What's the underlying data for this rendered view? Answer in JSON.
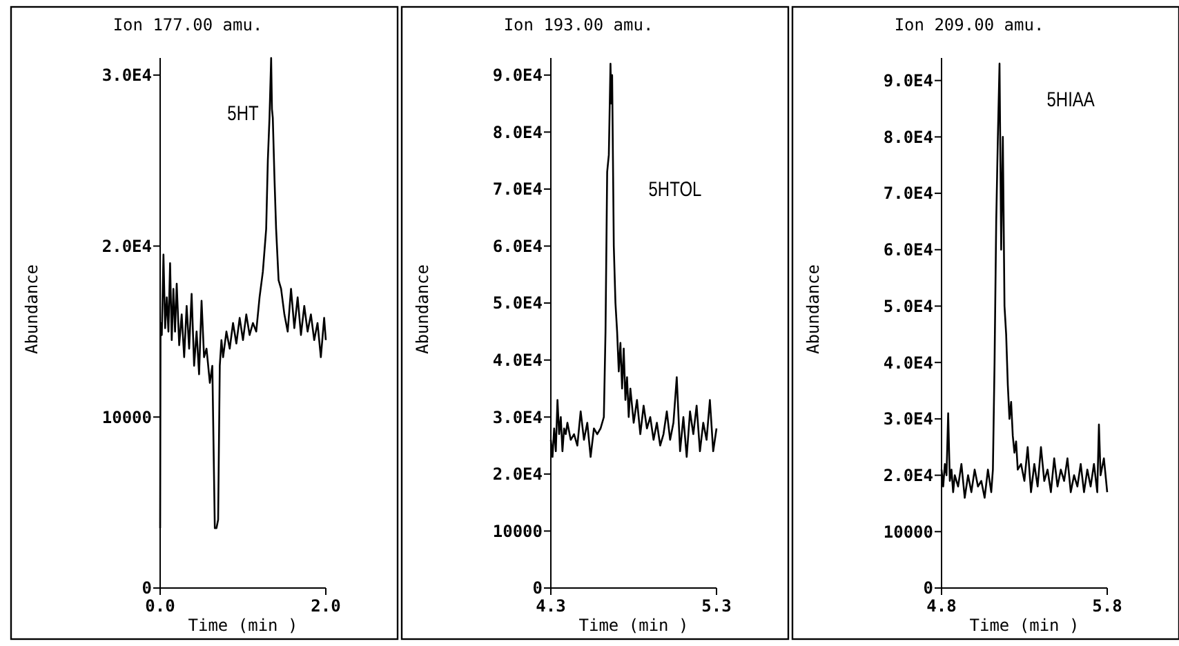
{
  "chart_data": [
    {
      "type": "line",
      "title": "Ion 177.00 amu.",
      "xlabel": "Time (min )",
      "ylabel": "Abundance",
      "xlim": [
        0,
        2
      ],
      "xticks": [
        {
          "value": 0,
          "label": "0.0"
        },
        {
          "value": 2,
          "label": "2.0"
        }
      ],
      "ylim": [
        0,
        31000
      ],
      "yticks": [
        {
          "value": 0,
          "label": "0"
        },
        {
          "value": 10000,
          "label": "10000"
        },
        {
          "value": 20000,
          "label": "2.0E4"
        },
        {
          "value": 30000,
          "label": "3.0E4"
        }
      ],
      "annotations": [
        "5HT"
      ],
      "series": [
        {
          "color": "#000000",
          "x": [
            0,
            0.005,
            0.02,
            0.04,
            0.06,
            0.08,
            0.1,
            0.12,
            0.14,
            0.16,
            0.18,
            0.2,
            0.23,
            0.26,
            0.29,
            0.32,
            0.35,
            0.38,
            0.41,
            0.44,
            0.47,
            0.5,
            0.53,
            0.56,
            0.6,
            0.63,
            0.66,
            0.68,
            0.7,
            0.72,
            0.74,
            0.76,
            0.8,
            0.84,
            0.88,
            0.92,
            0.96,
            1.0,
            1.04,
            1.08,
            1.12,
            1.16,
            1.2,
            1.24,
            1.28,
            1.3,
            1.32,
            1.34,
            1.35,
            1.36,
            1.38,
            1.4,
            1.43,
            1.46,
            1.5,
            1.54,
            1.58,
            1.62,
            1.66,
            1.7,
            1.74,
            1.78,
            1.82,
            1.86,
            1.9,
            1.94,
            1.98,
            2.0
          ],
          "values": [
            3500,
            15500,
            14800,
            19500,
            15200,
            17000,
            15000,
            19000,
            14500,
            17500,
            15000,
            17800,
            14200,
            16000,
            13500,
            16500,
            14000,
            17200,
            13000,
            15000,
            12500,
            16800,
            13500,
            14000,
            12000,
            13000,
            3500,
            3500,
            4000,
            13000,
            14500,
            13500,
            15000,
            14000,
            15500,
            14300,
            15800,
            14500,
            16000,
            14800,
            15500,
            15000,
            17000,
            18500,
            21000,
            25000,
            27500,
            31000,
            28000,
            27500,
            24000,
            21000,
            18000,
            17500,
            16000,
            15000,
            17500,
            15200,
            17000,
            14800,
            16500,
            15000,
            16000,
            14500,
            15500,
            13500,
            15800,
            14500
          ]
        }
      ]
    },
    {
      "type": "line",
      "title": "Ion 193.00 amu.",
      "xlabel": "Time (min )",
      "ylabel": "Abundance",
      "xlim": [
        4.3,
        5.3
      ],
      "xticks": [
        4.3,
        5.3
      ],
      "ylim": [
        0,
        93000
      ],
      "yticks": [
        {
          "value": 0,
          "label": "0"
        },
        {
          "value": 10000,
          "label": "10000"
        },
        {
          "value": 20000,
          "label": "2.0E4"
        },
        {
          "value": 30000,
          "label": "3.0E4"
        },
        {
          "value": 40000,
          "label": "4.0E4"
        },
        {
          "value": 50000,
          "label": "5.0E4"
        },
        {
          "value": 60000,
          "label": "6.0E4"
        },
        {
          "value": 70000,
          "label": "7.0E4"
        },
        {
          "value": 80000,
          "label": "8.0E4"
        },
        {
          "value": 90000,
          "label": "9.0E4"
        }
      ],
      "annotations": [
        "5HTOL"
      ],
      "series": [
        {
          "color": "#000000",
          "x": [
            4.3,
            4.31,
            4.32,
            4.33,
            4.34,
            4.35,
            4.36,
            4.37,
            4.38,
            4.39,
            4.4,
            4.42,
            4.44,
            4.46,
            4.48,
            4.5,
            4.52,
            4.54,
            4.56,
            4.58,
            4.6,
            4.62,
            4.63,
            4.64,
            4.65,
            4.66,
            4.665,
            4.67,
            4.675,
            4.68,
            4.69,
            4.7,
            4.71,
            4.72,
            4.73,
            4.74,
            4.75,
            4.76,
            4.77,
            4.78,
            4.8,
            4.82,
            4.84,
            4.86,
            4.88,
            4.9,
            4.92,
            4.94,
            4.96,
            4.98,
            5.0,
            5.02,
            5.04,
            5.06,
            5.08,
            5.1,
            5.12,
            5.14,
            5.16,
            5.18,
            5.2,
            5.22,
            5.24,
            5.26,
            5.28,
            5.3
          ],
          "values": [
            26000,
            23000,
            28000,
            24000,
            33000,
            27000,
            30000,
            24000,
            28000,
            27000,
            29000,
            26000,
            27000,
            25000,
            31000,
            26000,
            29000,
            23000,
            28000,
            27000,
            28000,
            30000,
            45000,
            73000,
            76000,
            92000,
            85000,
            90000,
            75000,
            60000,
            50000,
            45000,
            38000,
            43000,
            35000,
            42000,
            33000,
            37000,
            30000,
            35000,
            29000,
            33000,
            27000,
            32000,
            28000,
            30000,
            26000,
            29000,
            25000,
            27000,
            31000,
            26000,
            29000,
            37000,
            24000,
            30000,
            23000,
            31000,
            27000,
            32000,
            24000,
            29000,
            26000,
            33000,
            24000,
            28000
          ]
        }
      ]
    },
    {
      "type": "line",
      "title": "Ion 209.00 amu.",
      "xlabel": "Time (min )",
      "ylabel": "Abundance",
      "xlim": [
        4.8,
        5.8
      ],
      "xticks": [
        4.8,
        5.8
      ],
      "ylim": [
        0,
        94000
      ],
      "yticks": [
        {
          "value": 0,
          "label": "0"
        },
        {
          "value": 10000,
          "label": "10000"
        },
        {
          "value": 20000,
          "label": "2.0E4"
        },
        {
          "value": 30000,
          "label": "3.0E4"
        },
        {
          "value": 40000,
          "label": "4.0E4"
        },
        {
          "value": 50000,
          "label": "5.0E4"
        },
        {
          "value": 60000,
          "label": "6.0E4"
        },
        {
          "value": 70000,
          "label": "7.0E4"
        },
        {
          "value": 80000,
          "label": "8.0E4"
        },
        {
          "value": 90000,
          "label": "9.0E4"
        }
      ],
      "annotations": [
        "5HIAA"
      ],
      "series": [
        {
          "color": "#000000",
          "x": [
            4.8,
            4.81,
            4.82,
            4.83,
            4.84,
            4.85,
            4.86,
            4.87,
            4.88,
            4.9,
            4.92,
            4.94,
            4.96,
            4.98,
            5.0,
            5.02,
            5.04,
            5.06,
            5.08,
            5.1,
            5.11,
            5.12,
            5.13,
            5.14,
            5.15,
            5.16,
            5.17,
            5.18,
            5.19,
            5.2,
            5.21,
            5.22,
            5.23,
            5.24,
            5.25,
            5.26,
            5.28,
            5.3,
            5.32,
            5.34,
            5.36,
            5.38,
            5.4,
            5.42,
            5.44,
            5.46,
            5.48,
            5.5,
            5.52,
            5.54,
            5.56,
            5.58,
            5.6,
            5.62,
            5.64,
            5.66,
            5.68,
            5.7,
            5.72,
            5.74,
            5.75,
            5.76,
            5.78,
            5.8
          ],
          "values": [
            21000,
            18000,
            22000,
            20000,
            31000,
            19000,
            21000,
            17000,
            20000,
            18000,
            22000,
            16000,
            20000,
            17000,
            21000,
            18000,
            19000,
            16000,
            21000,
            17000,
            21000,
            40000,
            65000,
            80000,
            93000,
            60000,
            80000,
            50000,
            45000,
            36000,
            30000,
            33000,
            27000,
            24000,
            26000,
            21000,
            22000,
            19000,
            25000,
            17000,
            22000,
            18000,
            25000,
            19000,
            21000,
            17000,
            23000,
            18000,
            21000,
            19000,
            23000,
            17000,
            20000,
            18000,
            22000,
            17000,
            21000,
            18000,
            22000,
            17000,
            29000,
            20000,
            23000,
            17000
          ]
        }
      ]
    }
  ]
}
